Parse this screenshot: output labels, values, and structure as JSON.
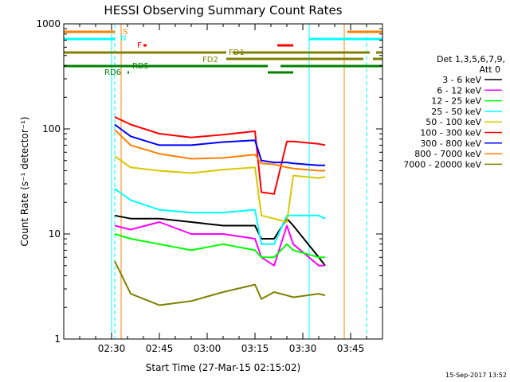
{
  "chart_data": {
    "type": "line",
    "title": "HESSI Observing Summary Count Rates",
    "xlabel": "Start Time (27-Mar-15 02:15:02)",
    "ylabel": "Count Rate (s⁻¹ detector⁻¹)",
    "yscale": "log",
    "ylim": [
      1,
      1000
    ],
    "xlim": [
      "02:15",
      "03:55"
    ],
    "x_ticks": [
      "02:30",
      "02:45",
      "03:00",
      "03:15",
      "03:30",
      "03:45"
    ],
    "y_ticks": [
      "1",
      "10",
      "100",
      "1000"
    ],
    "grid": false,
    "legend_position": "right",
    "legend_header": [
      "Det 1,3,5,6,7,9,",
      "Att 0"
    ],
    "timestamp": "15-Sep-2017 13:52",
    "x": [
      "02:31",
      "02:36",
      "02:45",
      "02:55",
      "03:05",
      "03:15",
      "03:17",
      "03:21",
      "03:25",
      "03:27",
      "03:35",
      "03:37"
    ],
    "series": [
      {
        "name": "3 - 6 keV",
        "color": "#000000",
        "values": [
          15,
          14,
          14,
          13,
          12,
          12,
          9,
          9,
          14,
          12,
          6,
          5
        ]
      },
      {
        "name": "6 - 12 keV",
        "color": "#ff00ff",
        "values": [
          12,
          11,
          13,
          10,
          10,
          9,
          6,
          5,
          12,
          8,
          5,
          5
        ]
      },
      {
        "name": "12 - 25 keV",
        "color": "#00ff00",
        "values": [
          10,
          9,
          8,
          7,
          8,
          7,
          6,
          6,
          8,
          7,
          6,
          6
        ]
      },
      {
        "name": "25 - 50 keV",
        "color": "#00ffff",
        "values": [
          27,
          21,
          17,
          16,
          16,
          17,
          8,
          8,
          15,
          15,
          15,
          14
        ]
      },
      {
        "name": "50 - 100 keV",
        "color": "#d8c800",
        "values": [
          55,
          43,
          40,
          38,
          41,
          43,
          15,
          14,
          13,
          36,
          34,
          35
        ]
      },
      {
        "name": "100 - 300 keV",
        "color": "#ff0000",
        "values": [
          130,
          110,
          90,
          83,
          88,
          95,
          25,
          24,
          76,
          76,
          72,
          70
        ]
      },
      {
        "name": "300 - 800 keV",
        "color": "#0000ff",
        "values": [
          110,
          85,
          70,
          70,
          75,
          78,
          50,
          48,
          48,
          47,
          45,
          45
        ]
      },
      {
        "name": "800 - 7000 keV",
        "color": "#ff8000",
        "values": [
          98,
          70,
          58,
          52,
          53,
          57,
          47,
          46,
          43,
          42,
          40,
          40
        ]
      },
      {
        "name": "7000 - 20000 keV",
        "color": "#808000",
        "values": [
          5.5,
          2.7,
          2.1,
          2.3,
          2.8,
          3.3,
          2.4,
          2.8,
          2.6,
          2.5,
          2.7,
          2.6
        ]
      }
    ],
    "vertical_lines": [
      {
        "time": "02:30",
        "color": "#00ffff",
        "style": "solid"
      },
      {
        "time": "02:31",
        "color": "#00ffff",
        "style": "dashed"
      },
      {
        "time": "02:33",
        "color": "#ff8000",
        "style": "solid"
      },
      {
        "time": "03:32",
        "color": "#00ffff",
        "style": "solid"
      },
      {
        "time": "03:43",
        "color": "#ff8000",
        "style": "solid"
      },
      {
        "time": "03:50",
        "color": "#00ffff",
        "style": "dashed"
      }
    ],
    "flag_bars": [
      {
        "label": "S",
        "color": "#ff8000",
        "segments": [
          [
            "02:15",
            "02:31"
          ],
          [
            "03:44",
            "03:55"
          ]
        ]
      },
      {
        "label": "N",
        "color": "#00ffff",
        "segments": [
          [
            "02:15",
            "02:31"
          ],
          [
            "03:32",
            "03:55"
          ]
        ]
      },
      {
        "label": "F",
        "color": "#ff0000",
        "segments": [
          [
            "02:40",
            "02:41"
          ],
          [
            "03:22",
            "03:27"
          ]
        ]
      },
      {
        "label": "FD1",
        "color": "#808000",
        "segments": [
          [
            "02:15",
            "03:06"
          ],
          [
            "03:08",
            "03:51"
          ],
          [
            "03:53",
            "03:55"
          ]
        ]
      },
      {
        "label": "FD2",
        "color": "#808000",
        "segments": [
          [
            "03:06",
            "03:49"
          ],
          [
            "03:52",
            "03:55"
          ]
        ]
      },
      {
        "label": "RD5",
        "color": "#008000",
        "segments": [
          [
            "02:15",
            "03:19"
          ],
          [
            "03:23",
            "03:55"
          ]
        ]
      },
      {
        "label": "RD6",
        "color": "#008000",
        "segments": [
          [
            "02:35",
            "02:35"
          ],
          [
            "03:19",
            "03:27"
          ]
        ]
      }
    ]
  }
}
